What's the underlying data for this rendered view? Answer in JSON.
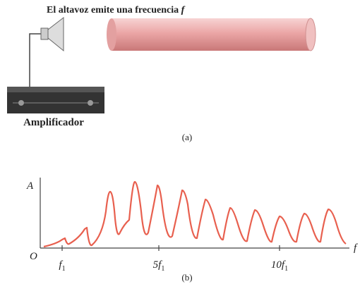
{
  "figure_a": {
    "caption_text": "El altavoz emite una frecuencia",
    "caption_var": "f",
    "amplifier_label": "Amplificador",
    "panel_label": "(a)"
  },
  "figure_b": {
    "y_axis_label": "A",
    "origin_label": "O",
    "x_axis_label": "f",
    "x_tick_labels": [
      {
        "main": "f",
        "sub": "1"
      },
      {
        "main": "5f",
        "sub": "1"
      },
      {
        "main": "10f",
        "sub": "1"
      }
    ],
    "panel_label": "(b)"
  }
}
